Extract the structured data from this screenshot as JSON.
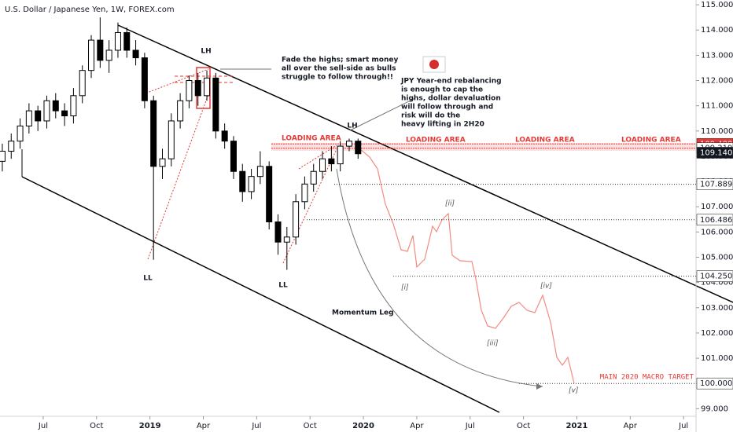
{
  "chart_data": {
    "type": "candlestick",
    "title": "U.S. Dollar / Japanese Yen, 1W, FOREX.com",
    "x": [
      3.7,
      4.2,
      4.7,
      5.2,
      5.7,
      6.2,
      6.7,
      7.2,
      7.7,
      8.2,
      8.7,
      9.2,
      9.7,
      10.2,
      10.7,
      11.2,
      11.7,
      12.2,
      12.7,
      13.2,
      13.7,
      14.2,
      14.7,
      15.2,
      15.7,
      16.2,
      16.7,
      17.2,
      17.7,
      18.2,
      18.7,
      19.2,
      19.7,
      20.2,
      20.7,
      21.2,
      21.7,
      22.2,
      22.7,
      23.2,
      23.7
    ],
    "open": [
      108.8,
      109.2,
      109.6,
      110.2,
      110.8,
      110.4,
      111.2,
      110.8,
      110.6,
      111.4,
      112.4,
      113.6,
      112.8,
      113.2,
      113.9,
      113.2,
      112.9,
      111.2,
      108.6,
      108.9,
      110.4,
      111.2,
      112.0,
      111.4,
      112.1,
      110.0,
      109.6,
      108.4,
      107.6,
      108.2,
      108.6,
      106.4,
      105.6,
      105.8,
      107.2,
      107.9,
      108.4,
      108.9,
      108.7,
      109.4,
      109.6
    ],
    "high": [
      109.5,
      109.9,
      110.5,
      111.1,
      111.0,
      111.4,
      111.5,
      111.1,
      111.7,
      112.6,
      113.8,
      114.5,
      113.6,
      114.3,
      114.1,
      113.6,
      113.1,
      111.4,
      109.3,
      110.7,
      111.5,
      112.2,
      112.3,
      112.4,
      112.3,
      110.3,
      109.8,
      108.7,
      108.5,
      109.2,
      108.8,
      106.7,
      106.2,
      107.5,
      108.2,
      108.7,
      109.2,
      109.4,
      109.6,
      109.7,
      109.7
    ],
    "low": [
      108.4,
      108.9,
      109.3,
      109.9,
      110.0,
      110.1,
      110.5,
      110.2,
      110.3,
      111.1,
      112.1,
      112.5,
      112.3,
      112.9,
      112.9,
      112.6,
      110.9,
      104.9,
      108.1,
      108.6,
      110.1,
      110.9,
      111.0,
      111.2,
      109.7,
      109.3,
      108.1,
      107.2,
      107.3,
      107.9,
      106.1,
      105.1,
      104.5,
      105.5,
      106.9,
      107.6,
      108.1,
      108.4,
      108.4,
      109.2,
      108.9
    ],
    "close": [
      109.2,
      109.6,
      110.2,
      110.8,
      110.4,
      111.2,
      110.8,
      110.6,
      111.4,
      112.4,
      113.6,
      112.8,
      113.2,
      113.9,
      113.2,
      112.9,
      111.2,
      108.6,
      108.9,
      110.4,
      111.2,
      112.0,
      111.4,
      112.1,
      110.0,
      109.6,
      108.4,
      107.6,
      108.2,
      108.6,
      106.4,
      105.6,
      105.8,
      107.2,
      107.9,
      108.4,
      108.9,
      108.7,
      109.4,
      109.6,
      109.1
    ],
    "xlim": [
      3.57,
      42.7
    ],
    "ylim": [
      98.7,
      115.19
    ],
    "xticks": [
      {
        "value": 6,
        "label": "Jul"
      },
      {
        "value": 9,
        "label": "Oct"
      },
      {
        "value": 12,
        "label": "2019"
      },
      {
        "value": 15,
        "label": "Apr"
      },
      {
        "value": 18,
        "label": "Jul"
      },
      {
        "value": 21,
        "label": "Oct"
      },
      {
        "value": 24,
        "label": "2020"
      },
      {
        "value": 27,
        "label": "Apr"
      },
      {
        "value": 30,
        "label": "Jul"
      },
      {
        "value": 33,
        "label": "Oct"
      },
      {
        "value": 36,
        "label": "2021"
      },
      {
        "value": 39,
        "label": "Apr"
      },
      {
        "value": 42,
        "label": "Jul"
      }
    ],
    "yticks": [
      {
        "value": 99,
        "label": "99.000"
      },
      {
        "value": 100,
        "label": "100.000"
      },
      {
        "value": 101,
        "label": "101.000"
      },
      {
        "value": 102,
        "label": "102.000"
      },
      {
        "value": 103,
        "label": "103.000"
      },
      {
        "value": 104,
        "label": "104.000"
      },
      {
        "value": 105,
        "label": "105.000"
      },
      {
        "value": 106,
        "label": "106.000"
      },
      {
        "value": 107,
        "label": "107.000"
      },
      {
        "value": 108,
        "label": "108.000"
      },
      {
        "value": 109,
        "label": "109.000"
      },
      {
        "value": 110,
        "label": "110.000"
      },
      {
        "value": 111,
        "label": "111.000"
      },
      {
        "value": 112,
        "label": "112.000"
      },
      {
        "value": 113,
        "label": "113.000"
      },
      {
        "value": 114,
        "label": "114.000"
      },
      {
        "value": 115,
        "label": "115.000"
      }
    ],
    "levels": [
      107.889,
      106.486,
      {
        "value": 104.25,
        "label": "104.250"
      },
      {
        "value": 100,
        "label": "100.000"
      }
    ],
    "loading_levels": [
      109.488,
      109.319
    ],
    "last_price": {
      "value": 109.14,
      "label": "109.140"
    },
    "annotations": {
      "lh": [
        "LH",
        "LH"
      ],
      "ll": [
        "LL",
        "LL"
      ],
      "fade": [
        "Fade the highs; smart money",
        "all over the sell-side as bulls",
        "struggle to follow through!!"
      ],
      "jpy": [
        "JPY Year-end rebalancing",
        "is enough to cap the",
        "highs, dollar devaluation",
        "will follow through and",
        "risk will do the",
        "heavy lifting in 2H20"
      ],
      "loading": [
        "LOADING AREA",
        "LOADING AREA",
        "LOADING AREA",
        "LOADING AREA"
      ],
      "momentum": "Momentum Leg",
      "waves": [
        "[i]",
        "[ii]",
        "[iii]",
        "[iv]",
        "[v]"
      ],
      "target": "MAIN 2020 MACRO TARGET"
    }
  }
}
